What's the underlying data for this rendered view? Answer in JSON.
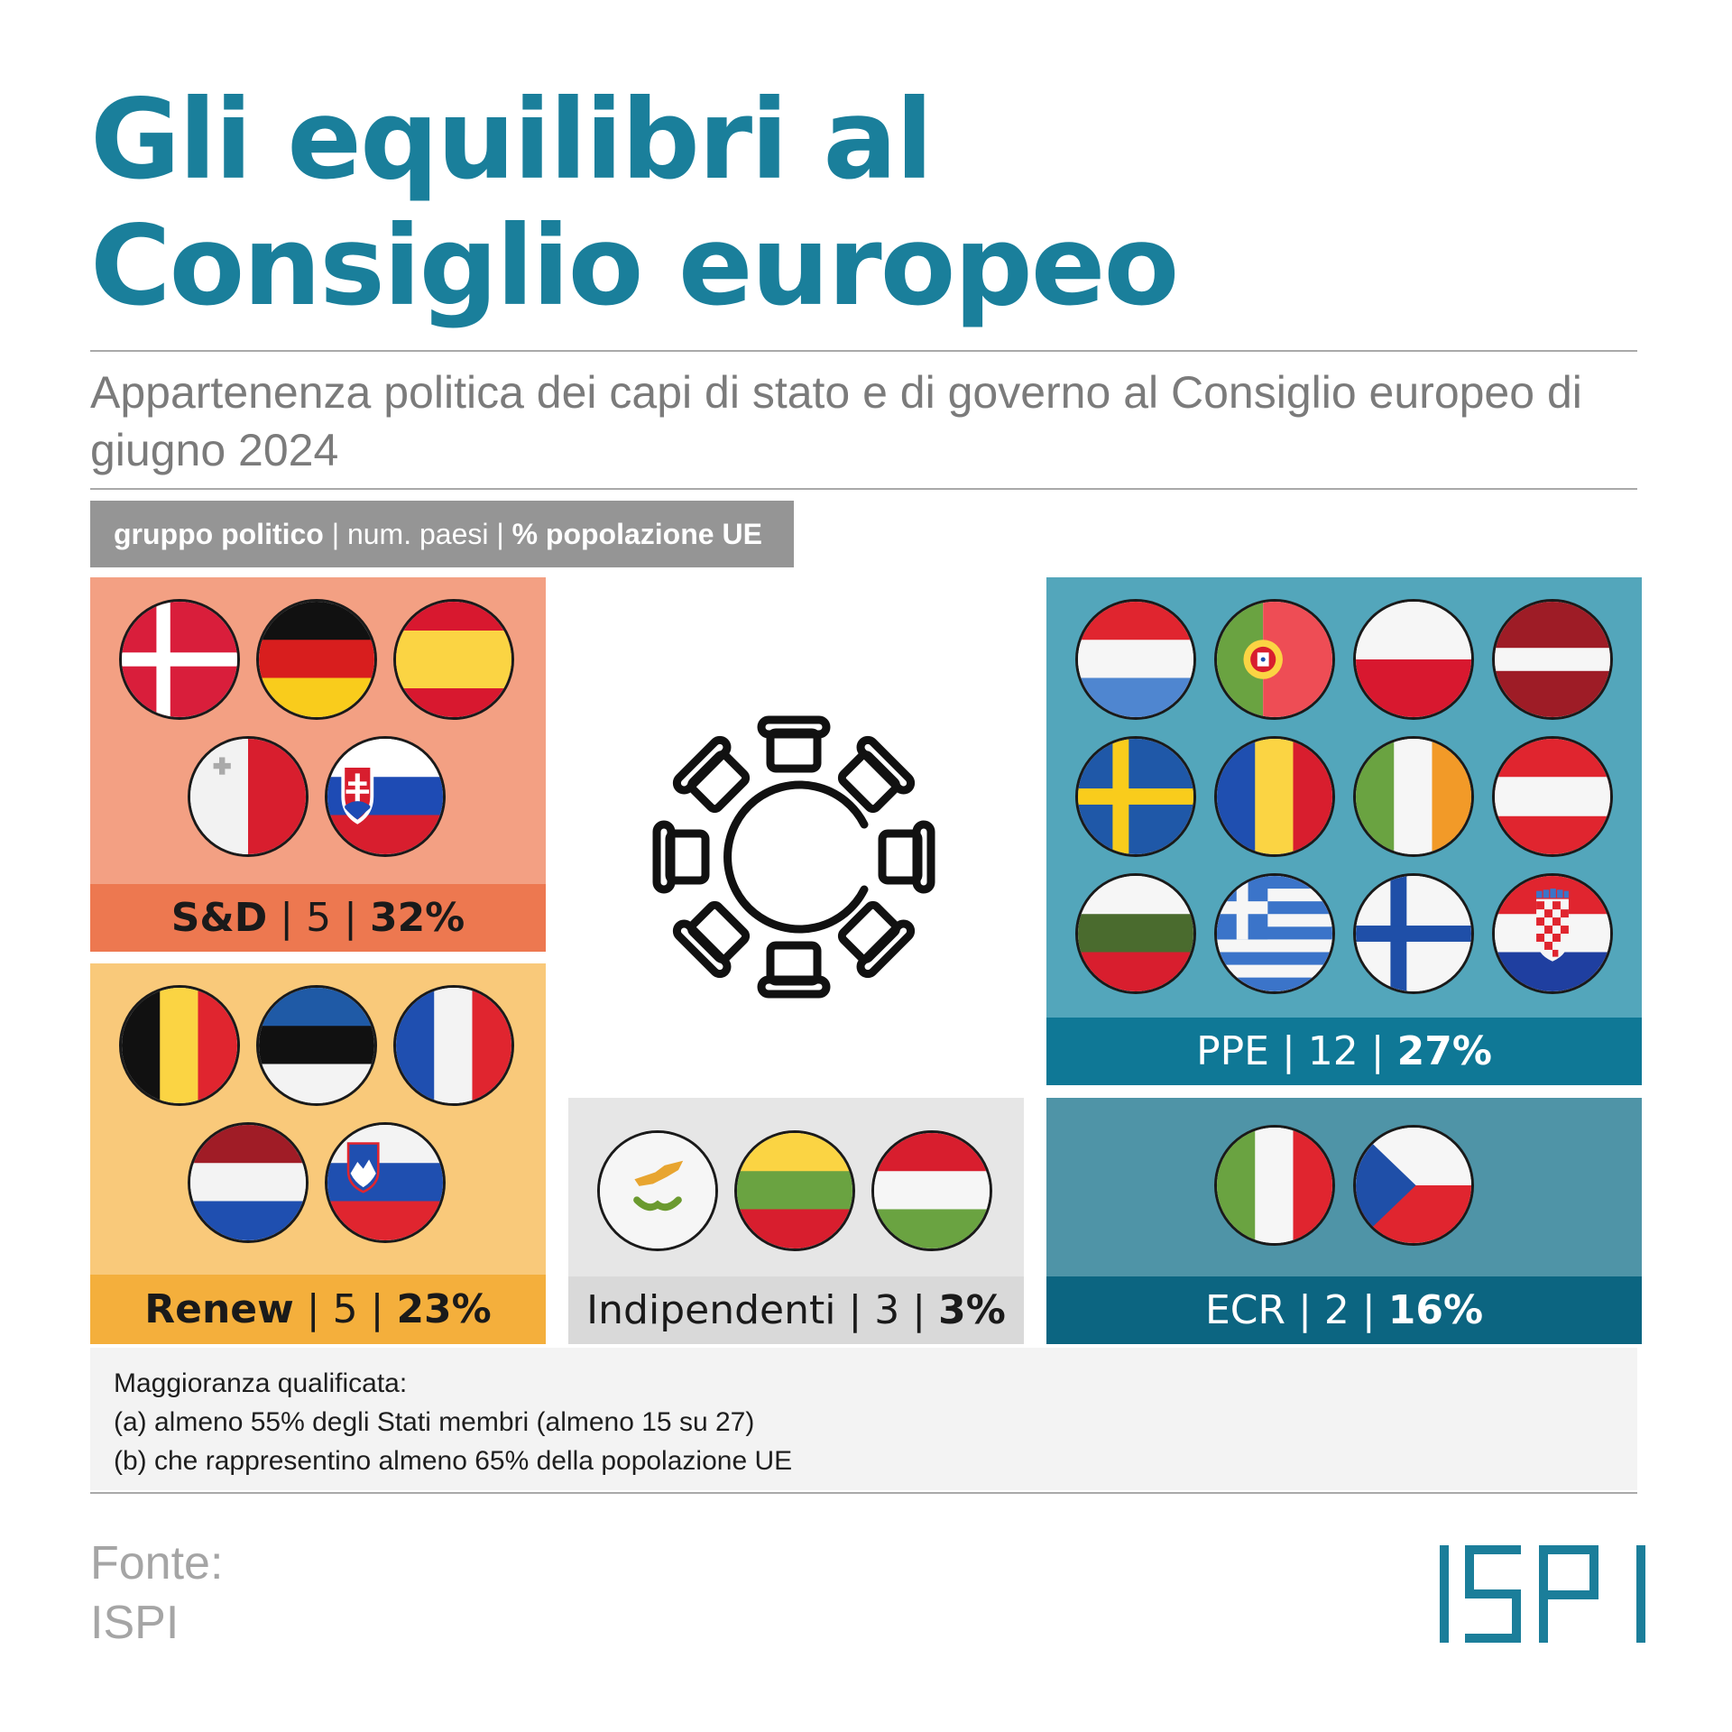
{
  "title": [
    "Gli equilibri al",
    "Consiglio europeo"
  ],
  "subtitle": "Appartenenza politica dei capi di stato e di governo al Consiglio europeo di giugno 2024",
  "legend": {
    "group": "gruppo politico",
    "sep1": " | ",
    "countries": "num. paesi",
    "sep2": " | ",
    "population": "% popolazione UE"
  },
  "groups": {
    "sd": {
      "name": "S&D",
      "countries": "5",
      "population": "32%",
      "color": "#ed7850",
      "bg": "#f3a083",
      "flags": [
        "denmark-flag",
        "germany-flag",
        "spain-flag",
        "malta-flag",
        "slovakia-flag"
      ]
    },
    "renew": {
      "name": "Renew",
      "countries": "5",
      "population": "23%",
      "color": "#f4af3c",
      "bg": "#f9c97a",
      "flags": [
        "belgium-flag",
        "estonia-flag",
        "france-flag",
        "netherlands-flag",
        "slovenia-flag"
      ]
    },
    "ind": {
      "name": "Indipendenti",
      "countries": "3",
      "population": "3%",
      "color": "#d9d9d9",
      "bg": "#e6e6e6",
      "flags": [
        "cyprus-flag",
        "lithuania-flag",
        "hungary-flag"
      ]
    },
    "ppe": {
      "name": "PPE",
      "countries": "12",
      "population": "27%",
      "color": "#0f7896",
      "bg": "#53a6bb",
      "flags": [
        "luxembourg-flag",
        "portugal-flag",
        "poland-flag",
        "latvia-flag",
        "sweden-flag",
        "romania-flag",
        "ireland-flag",
        "austria-flag",
        "bulgaria-flag",
        "greece-flag",
        "finland-flag",
        "croatia-flag"
      ]
    },
    "ecr": {
      "name": "ECR",
      "countries": "2",
      "population": "16%",
      "color": "#0c6581",
      "bg": "#4f94a7",
      "flags": [
        "italy-flag",
        "czechia-flag"
      ]
    }
  },
  "separator": "|",
  "note": [
    "Maggioranza qualificata:",
    "(a) almeno 55% degli Stati membri (almeno 15 su 27)",
    "(b) che rappresentino almeno 65% della popolazione UE"
  ],
  "source": [
    "Fonte:",
    "ISPI"
  ],
  "logo": "ISPI",
  "colors": {
    "title": "#1a7f9b",
    "logo": "#1b7e9a"
  }
}
